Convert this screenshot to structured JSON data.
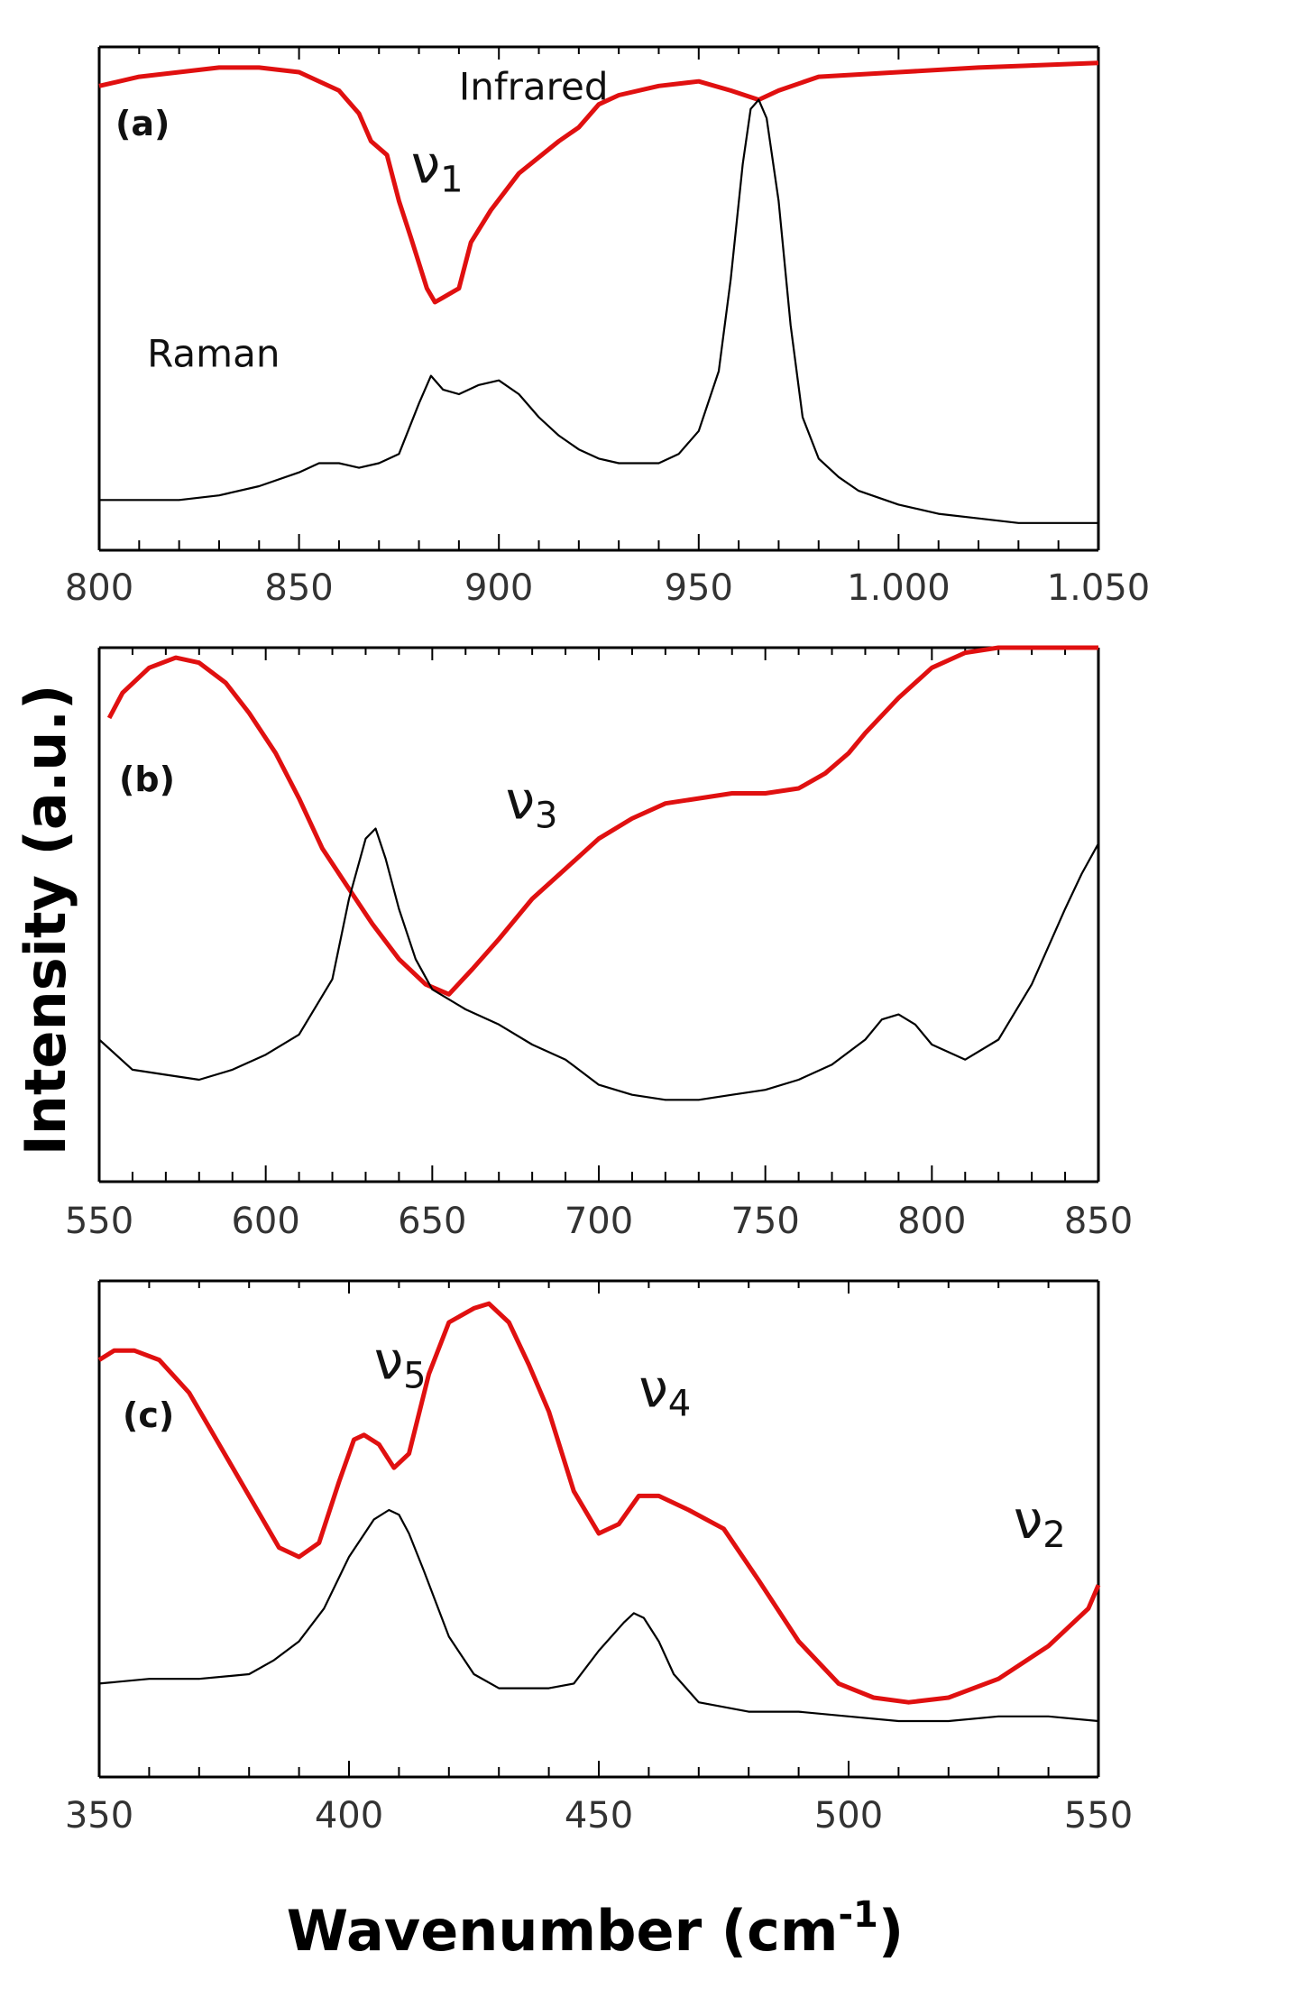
{
  "colors": {
    "infrared": "#e01010",
    "raman": "#000000",
    "axis": "#000000"
  },
  "xlabel": "Wavenumber (cm",
  "xlabel_sup": "-1",
  "xlabel_close": ")",
  "ylabel": "Intensity (a.u.)",
  "chart_data": [
    {
      "type": "line",
      "panel": "(a)",
      "xlim": [
        800,
        1050
      ],
      "ticks": [
        800,
        850,
        900,
        950,
        1000,
        1050
      ],
      "tick_labels": [
        "800",
        "850",
        "900",
        "950",
        "1.000",
        "1.050"
      ],
      "ylim": [
        0,
        1
      ],
      "annotations": [
        {
          "text": "Infrared",
          "x": 890,
          "y": 0.94
        },
        {
          "text": "Raman",
          "x": 812,
          "y": 0.36
        },
        {
          "text": "ν",
          "sub": "1",
          "x": 878,
          "y": 0.76
        }
      ],
      "series": [
        {
          "name": "Infrared",
          "x": [
            800,
            810,
            820,
            830,
            840,
            850,
            860,
            865,
            868,
            872,
            875,
            878,
            882,
            884,
            886,
            890,
            893,
            898,
            905,
            915,
            920,
            925,
            930,
            940,
            950,
            958,
            965,
            970,
            980,
            1000,
            1020,
            1050
          ],
          "y": [
            0.97,
            0.99,
            1.0,
            1.01,
            1.01,
            1.0,
            0.96,
            0.91,
            0.85,
            0.82,
            0.72,
            0.64,
            0.53,
            0.5,
            0.51,
            0.53,
            0.63,
            0.7,
            0.78,
            0.85,
            0.88,
            0.93,
            0.95,
            0.97,
            0.98,
            0.96,
            0.94,
            0.96,
            0.99,
            1.0,
            1.01,
            1.02
          ]
        },
        {
          "name": "Raman",
          "x": [
            800,
            810,
            820,
            830,
            840,
            850,
            855,
            860,
            865,
            870,
            875,
            880,
            883,
            886,
            890,
            895,
            900,
            905,
            910,
            915,
            920,
            925,
            930,
            935,
            940,
            945,
            950,
            955,
            958,
            961,
            963,
            965,
            967,
            970,
            973,
            976,
            980,
            985,
            990,
            1000,
            1010,
            1020,
            1030,
            1040,
            1050
          ],
          "y": [
            0.07,
            0.07,
            0.07,
            0.08,
            0.1,
            0.13,
            0.15,
            0.15,
            0.14,
            0.15,
            0.17,
            0.28,
            0.34,
            0.31,
            0.3,
            0.32,
            0.33,
            0.3,
            0.25,
            0.21,
            0.18,
            0.16,
            0.15,
            0.15,
            0.15,
            0.17,
            0.22,
            0.35,
            0.55,
            0.8,
            0.92,
            0.94,
            0.9,
            0.72,
            0.45,
            0.25,
            0.16,
            0.12,
            0.09,
            0.06,
            0.04,
            0.03,
            0.02,
            0.02,
            0.02
          ]
        }
      ]
    },
    {
      "type": "line",
      "panel": "(b)",
      "xlim": [
        550,
        850
      ],
      "ticks": [
        550,
        600,
        650,
        700,
        750,
        800,
        850
      ],
      "tick_labels": [
        "550",
        "600",
        "650",
        "700",
        "750",
        "800",
        "850"
      ],
      "ylim": [
        0,
        1
      ],
      "annotations": [
        {
          "text": "ν",
          "sub": "3",
          "x": 672,
          "y": 0.66
        }
      ],
      "series": [
        {
          "name": "Infrared",
          "x": [
            553,
            557,
            565,
            573,
            580,
            588,
            595,
            603,
            610,
            617,
            625,
            632,
            640,
            648,
            655,
            662,
            670,
            680,
            690,
            700,
            710,
            720,
            730,
            740,
            750,
            760,
            768,
            775,
            780,
            790,
            800,
            810,
            820,
            840,
            850
          ],
          "y": [
            0.86,
            0.91,
            0.96,
            0.98,
            0.97,
            0.93,
            0.87,
            0.79,
            0.7,
            0.6,
            0.52,
            0.45,
            0.38,
            0.33,
            0.31,
            0.36,
            0.42,
            0.5,
            0.56,
            0.62,
            0.66,
            0.69,
            0.7,
            0.71,
            0.71,
            0.72,
            0.75,
            0.79,
            0.83,
            0.9,
            0.96,
            0.99,
            1.0,
            1.0,
            1.0
          ]
        },
        {
          "name": "Raman",
          "x": [
            550,
            560,
            570,
            580,
            590,
            600,
            610,
            620,
            625,
            630,
            633,
            636,
            640,
            645,
            650,
            660,
            670,
            680,
            690,
            700,
            710,
            720,
            730,
            740,
            750,
            760,
            770,
            780,
            785,
            790,
            795,
            800,
            810,
            820,
            830,
            840,
            845,
            850
          ],
          "y": [
            0.22,
            0.16,
            0.15,
            0.14,
            0.16,
            0.19,
            0.23,
            0.34,
            0.5,
            0.62,
            0.64,
            0.58,
            0.48,
            0.38,
            0.32,
            0.28,
            0.25,
            0.21,
            0.18,
            0.13,
            0.11,
            0.1,
            0.1,
            0.11,
            0.12,
            0.14,
            0.17,
            0.22,
            0.26,
            0.27,
            0.25,
            0.21,
            0.18,
            0.22,
            0.33,
            0.48,
            0.55,
            0.61
          ]
        }
      ]
    },
    {
      "type": "line",
      "panel": "(c)",
      "xlim": [
        350,
        550
      ],
      "ticks": [
        350,
        400,
        450,
        500,
        550
      ],
      "tick_labels": [
        "350",
        "400",
        "450",
        "500",
        "550"
      ],
      "ylim": [
        0,
        1
      ],
      "annotations": [
        {
          "text": "ν",
          "sub": "5",
          "x": 405,
          "y": 0.83
        },
        {
          "text": "ν",
          "sub": "4",
          "x": 458,
          "y": 0.77
        },
        {
          "text": "ν",
          "sub": "2",
          "x": 533,
          "y": 0.49
        }
      ],
      "series": [
        {
          "name": "Infrared",
          "x": [
            350,
            353,
            357,
            362,
            368,
            374,
            380,
            386,
            390,
            394,
            398,
            401,
            403,
            406,
            409,
            412,
            416,
            420,
            425,
            428,
            432,
            436,
            440,
            445,
            450,
            454,
            458,
            462,
            468,
            475,
            482,
            490,
            498,
            505,
            512,
            520,
            530,
            540,
            548,
            550
          ],
          "y": [
            0.87,
            0.89,
            0.89,
            0.87,
            0.8,
            0.69,
            0.58,
            0.47,
            0.45,
            0.48,
            0.61,
            0.7,
            0.71,
            0.69,
            0.64,
            0.67,
            0.84,
            0.95,
            0.98,
            0.99,
            0.95,
            0.86,
            0.76,
            0.59,
            0.5,
            0.52,
            0.58,
            0.58,
            0.55,
            0.51,
            0.4,
            0.27,
            0.18,
            0.15,
            0.14,
            0.15,
            0.19,
            0.26,
            0.34,
            0.39
          ]
        },
        {
          "name": "Raman",
          "x": [
            350,
            360,
            370,
            380,
            385,
            390,
            395,
            400,
            405,
            408,
            410,
            412,
            415,
            420,
            425,
            430,
            435,
            440,
            445,
            450,
            455,
            457,
            459,
            462,
            465,
            470,
            480,
            490,
            500,
            510,
            520,
            530,
            540,
            550
          ],
          "y": [
            0.18,
            0.19,
            0.19,
            0.2,
            0.23,
            0.27,
            0.34,
            0.45,
            0.53,
            0.55,
            0.54,
            0.5,
            0.42,
            0.28,
            0.2,
            0.17,
            0.17,
            0.17,
            0.18,
            0.25,
            0.31,
            0.33,
            0.32,
            0.27,
            0.2,
            0.14,
            0.12,
            0.12,
            0.11,
            0.1,
            0.1,
            0.11,
            0.11,
            0.1
          ]
        }
      ]
    }
  ]
}
